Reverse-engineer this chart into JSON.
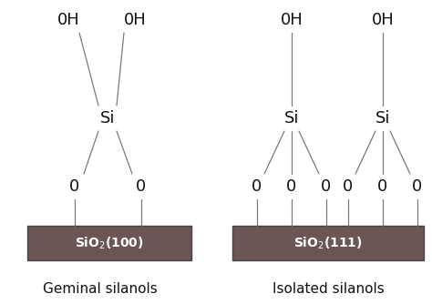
{
  "bg_color": "#ffffff",
  "line_color": "#7a7a7a",
  "box_color": "#6b5555",
  "box_edge_color": "#444444",
  "text_color": "#111111",
  "left_label": "Geminal silanols",
  "right_label": "Isolated silanols",
  "left_box_text": "SiO$_2$(100)",
  "right_box_text": "SiO$_2$(111)",
  "font_size_atoms": 13,
  "font_size_label": 11,
  "font_size_box": 10
}
